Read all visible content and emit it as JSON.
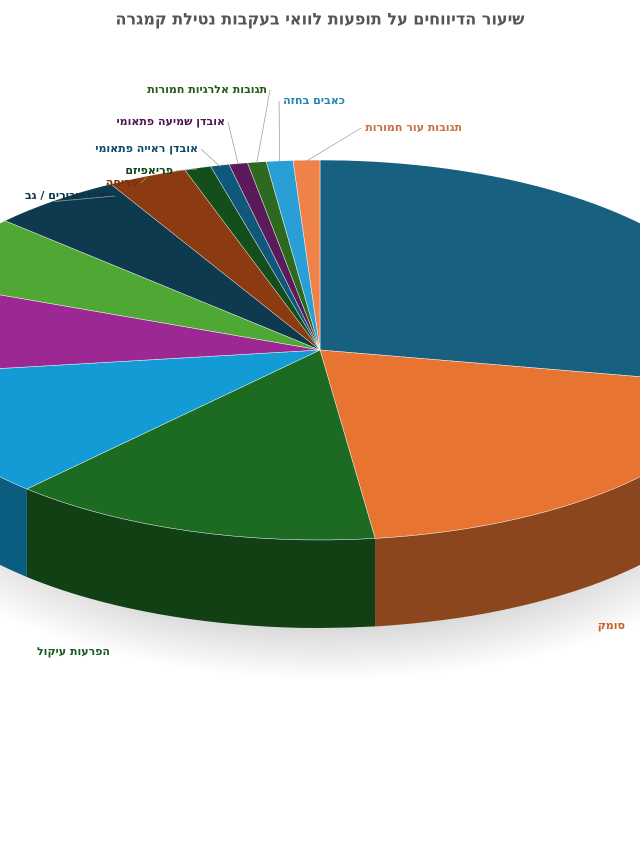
{
  "chart_data": {
    "type": "pie",
    "title": "שיעור הדיווחים על תופעות לוואי בעקבות נטילת קמגרה",
    "categories": [
      null,
      "סומק",
      "הפרעות עיקול",
      null,
      null,
      null,
      "כאבי שרירים / גב",
      "פריחה",
      "פריאפיזם",
      "אובדן ראייה פתאומי",
      "אובדן שמיעה פתאומי",
      "תגובות אלרגיות חמורות",
      "כאבים בחזה",
      "תגובות עור חמורות"
    ],
    "values": [
      28,
      20,
      14,
      11,
      8,
      6,
      5,
      3,
      1,
      0.7,
      0.7,
      0.7,
      1,
      1
    ],
    "colors": [
      "#17607f",
      "#e87431",
      "#1d6a23",
      "#139bd6",
      "#9b2893",
      "#4fa833",
      "#0e3a4f",
      "#8b3a11",
      "#134e1b",
      "#10587b",
      "#5b1a5a",
      "#2d6a1f",
      "#2a9fd6",
      "#ef8249"
    ]
  }
}
